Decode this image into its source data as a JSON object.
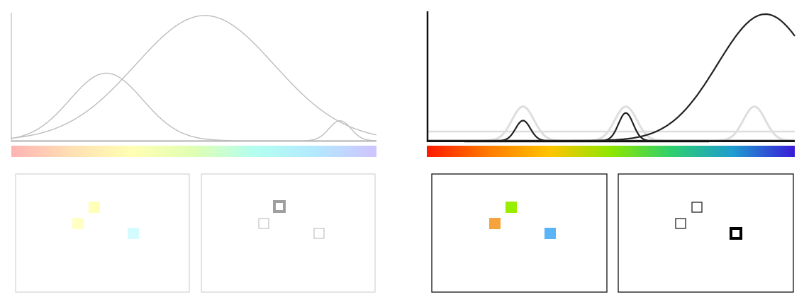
{
  "left_panel": {
    "theme": "faded",
    "axis_color": "#c8c8c8",
    "curve_color": "#bdbdbd",
    "gradient_stops": [
      "#ffb3b3",
      "#ffe0b3",
      "#ffffb3",
      "#dfffb3",
      "#b3fff0",
      "#b3e8ff",
      "#cfc3ff"
    ],
    "curves": [
      {
        "center": 0.26,
        "height": 0.54,
        "width": 0.1
      },
      {
        "center": 0.53,
        "height": 1.0,
        "width": 0.19
      },
      {
        "center": 0.9,
        "height": 0.16,
        "width": 0.03
      }
    ],
    "frames": [
      {
        "style": "filled",
        "border_color": "#c8c8c8",
        "squares": [
          {
            "color": "#ffffb8",
            "emphasis": "normal"
          },
          {
            "color": "#ffffc4",
            "emphasis": "normal"
          },
          {
            "color": "#d4fcff",
            "emphasis": "normal"
          }
        ]
      },
      {
        "style": "outline",
        "border_color": "#c8c8c8",
        "squares": [
          {
            "color": "#9f9f9f",
            "emphasis": "bold"
          },
          {
            "color": "#c6c6c6",
            "emphasis": "normal"
          },
          {
            "color": "#c6c6c6",
            "emphasis": "normal"
          }
        ]
      }
    ]
  },
  "right_panel": {
    "theme": "vivid",
    "axis_color": "#111111",
    "curve_color": "#222222",
    "ghost_color": "#dedede",
    "baseline_color": "#9a9a9a",
    "gradient_stops": [
      "#ff1a00",
      "#ff7b00",
      "#ffc400",
      "#8ee600",
      "#2ecf70",
      "#1f9bd0",
      "#3a1ad8"
    ],
    "peaks": [
      {
        "center": 0.26,
        "height": 0.16,
        "width": 0.02
      },
      {
        "center": 0.54,
        "height": 0.22,
        "width": 0.02
      },
      {
        "center": 0.92,
        "height": 1.0,
        "width": 0.13
      }
    ],
    "ghost_peaks": [
      {
        "center": 0.26,
        "height": 0.27,
        "width": 0.03
      },
      {
        "center": 0.54,
        "height": 0.27,
        "width": 0.03
      },
      {
        "center": 0.89,
        "height": 0.27,
        "width": 0.03
      }
    ],
    "frames": [
      {
        "style": "filled",
        "border_color": "#111111",
        "squares": [
          {
            "color": "#99ee00",
            "emphasis": "normal"
          },
          {
            "color": "#f5a33c",
            "emphasis": "normal"
          },
          {
            "color": "#5ab4f5",
            "emphasis": "normal"
          }
        ]
      },
      {
        "style": "outline",
        "border_color": "#111111",
        "squares": [
          {
            "color": "#222222",
            "emphasis": "normal"
          },
          {
            "color": "#222222",
            "emphasis": "normal"
          },
          {
            "color": "#000000",
            "emphasis": "bold"
          }
        ]
      }
    ]
  }
}
